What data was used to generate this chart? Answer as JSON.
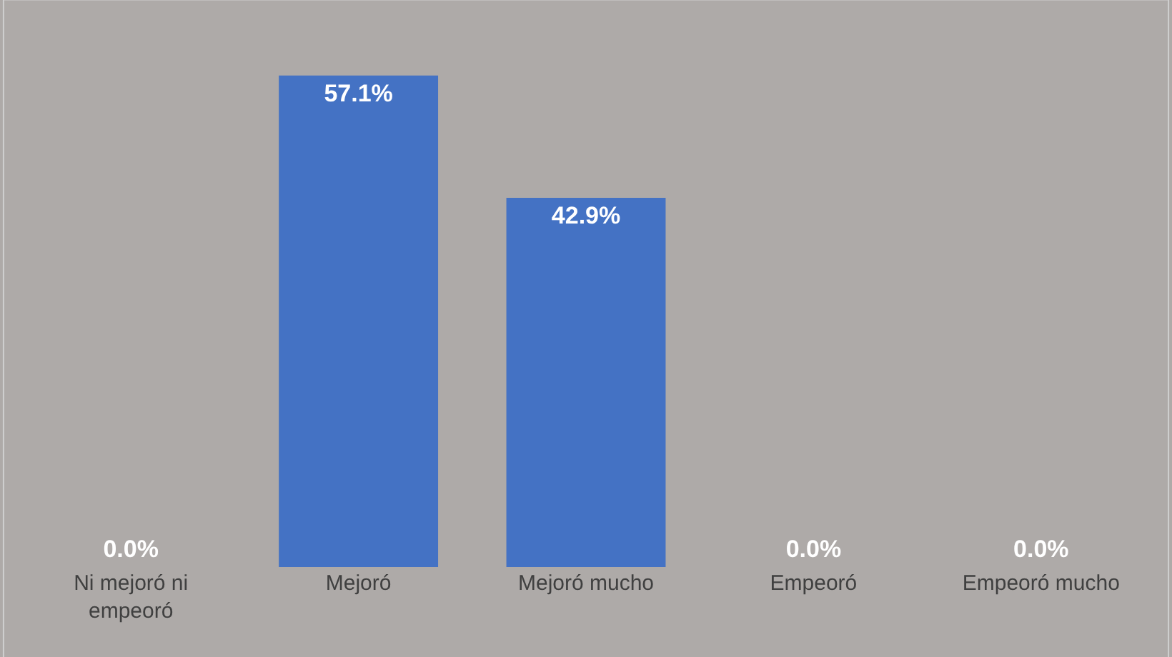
{
  "chart_data": {
    "type": "bar",
    "categories": [
      "Ni mejoró ni empeoró",
      "Mejoró",
      "Mejoró mucho",
      "Empeoró",
      "Empeoró mucho"
    ],
    "values": [
      0.0,
      57.1,
      42.9,
      0.0,
      0.0
    ],
    "value_labels": [
      "0.0%",
      "57.1%",
      "42.9%",
      "0.0%",
      "0.0%"
    ],
    "color": "#4472c4"
  }
}
